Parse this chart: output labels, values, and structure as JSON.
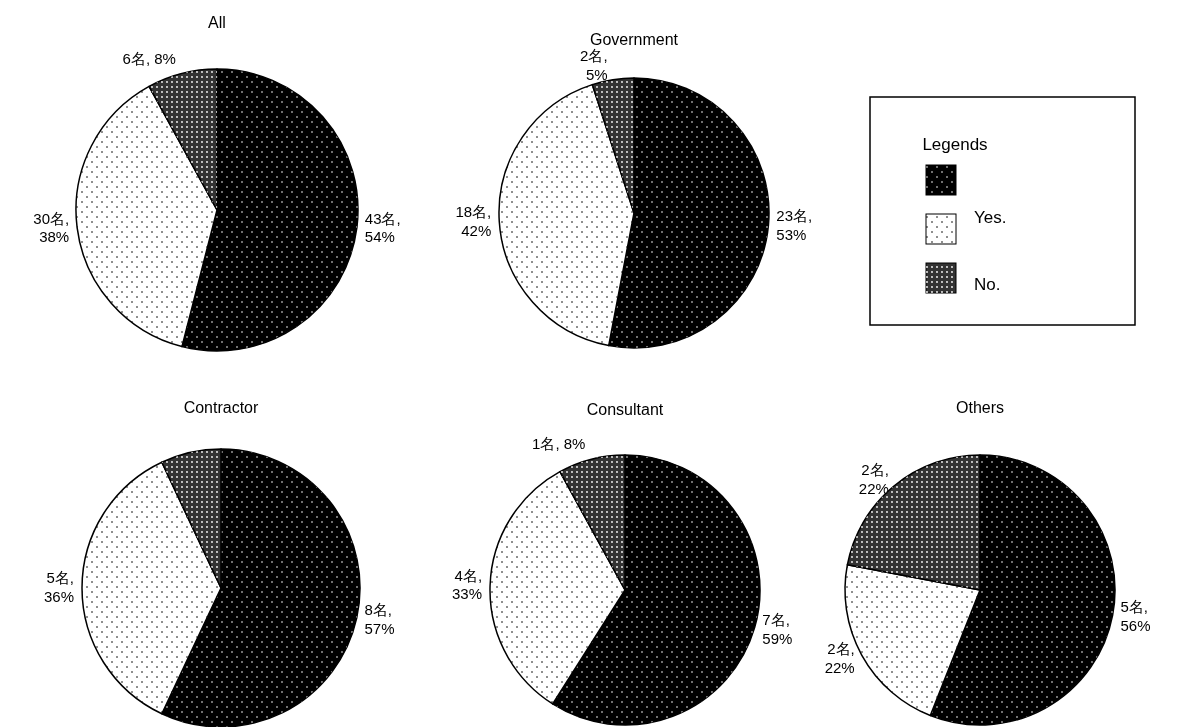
{
  "chart_data": [
    {
      "type": "pie",
      "title": "All",
      "categories": [
        null,
        null,
        null
      ],
      "values": [
        54,
        38,
        8
      ],
      "colors": [
        "#000000",
        "#ffffff",
        "#333333"
      ],
      "value_labels": [
        "43名,\n54%",
        "30名,\n38%",
        "6名, 8%"
      ]
    },
    {
      "type": "pie",
      "title": "Government",
      "categories": [
        null,
        "Yes.",
        "No."
      ],
      "values": [
        53,
        42,
        5
      ],
      "colors": [
        "#000000",
        "#ffffff",
        "#333333"
      ],
      "value_labels": [
        "23名,\n53%",
        "18名,\n42%",
        "2名,\n5%"
      ],
      "legend": "right",
      "legend_title": "Legends"
    },
    {
      "type": "pie",
      "title": "Contractor",
      "categories": [
        null,
        null,
        null
      ],
      "values": [
        57,
        36,
        7
      ],
      "colors": [
        "#000000",
        "#ffffff",
        "#333333"
      ],
      "value_labels": [
        "8名,\n57%",
        "5名,\n36%",
        null
      ]
    },
    {
      "type": "pie",
      "title": "Consultant",
      "categories": [
        null,
        null,
        null
      ],
      "values": [
        59,
        33,
        8
      ],
      "colors": [
        "#000000",
        "#ffffff",
        "#333333"
      ],
      "value_labels": [
        "7名,\n59%",
        "4名,\n33%",
        "1名, 8%"
      ]
    },
    {
      "type": "pie",
      "title": "Others",
      "categories": [
        null,
        null,
        null
      ],
      "values": [
        56,
        22,
        22
      ],
      "colors": [
        "#000000",
        "#ffffff",
        "#333333"
      ],
      "value_labels": [
        "5名,\n56%",
        "2名,\n22%",
        "2名,\n22%"
      ]
    }
  ]
}
